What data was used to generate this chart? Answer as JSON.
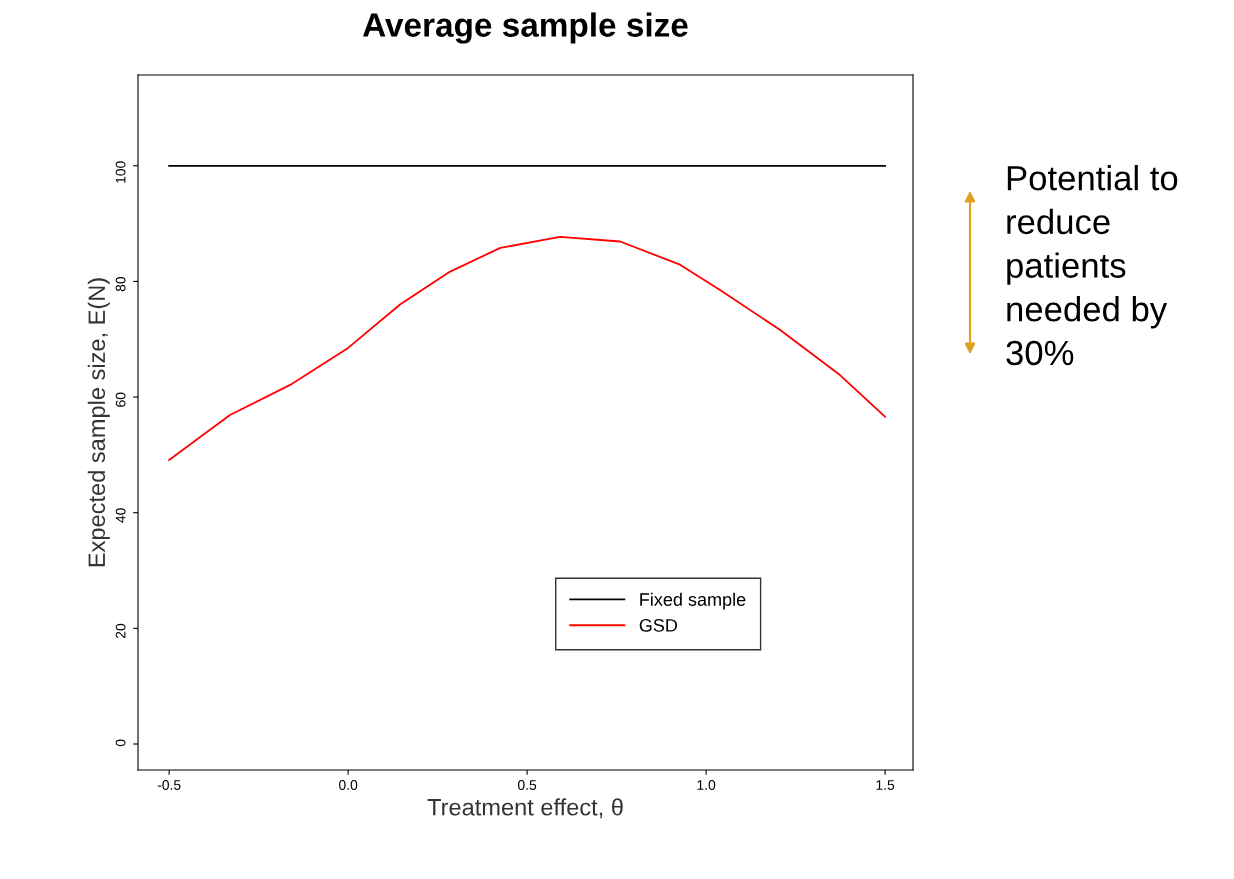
{
  "chart_data": {
    "type": "line",
    "title": "Average sample size",
    "xlabel": "Treatment effect, θ",
    "ylabel": "Expected sample size, E(N)",
    "xlim": [
      -0.587,
      1.578
    ],
    "ylim": [
      -4.5,
      115.7
    ],
    "xticks": [
      -0.5,
      {
        "value": 0,
        "label": "0.0"
      },
      0.5,
      {
        "value": 1,
        "label": "1.0"
      },
      1.5
    ],
    "yticks": [
      0,
      20,
      40,
      60,
      80,
      100
    ],
    "series": [
      {
        "name": "Fixed sample",
        "color": "#000000",
        "x": [
          -0.5,
          1.5
        ],
        "values": [
          100,
          100
        ]
      },
      {
        "name": "GSD",
        "color": "#ff0000",
        "x": [
          -0.5,
          -0.33,
          -0.162,
          0.0,
          0.145,
          0.285,
          0.425,
          0.592,
          0.76,
          0.927,
          1.039,
          1.207,
          1.374,
          1.5
        ],
        "values": [
          49.1,
          56.9,
          62.1,
          68.5,
          76,
          81.7,
          85.8,
          87.7,
          86.9,
          82.9,
          78.5,
          71.6,
          63.8,
          56.6
        ]
      }
    ],
    "legend": "bottom right",
    "grid": false,
    "marker": "none",
    "line_style": "solid",
    "annotations": [
      "Potential to reduce patients needed by 30%"
    ]
  }
}
